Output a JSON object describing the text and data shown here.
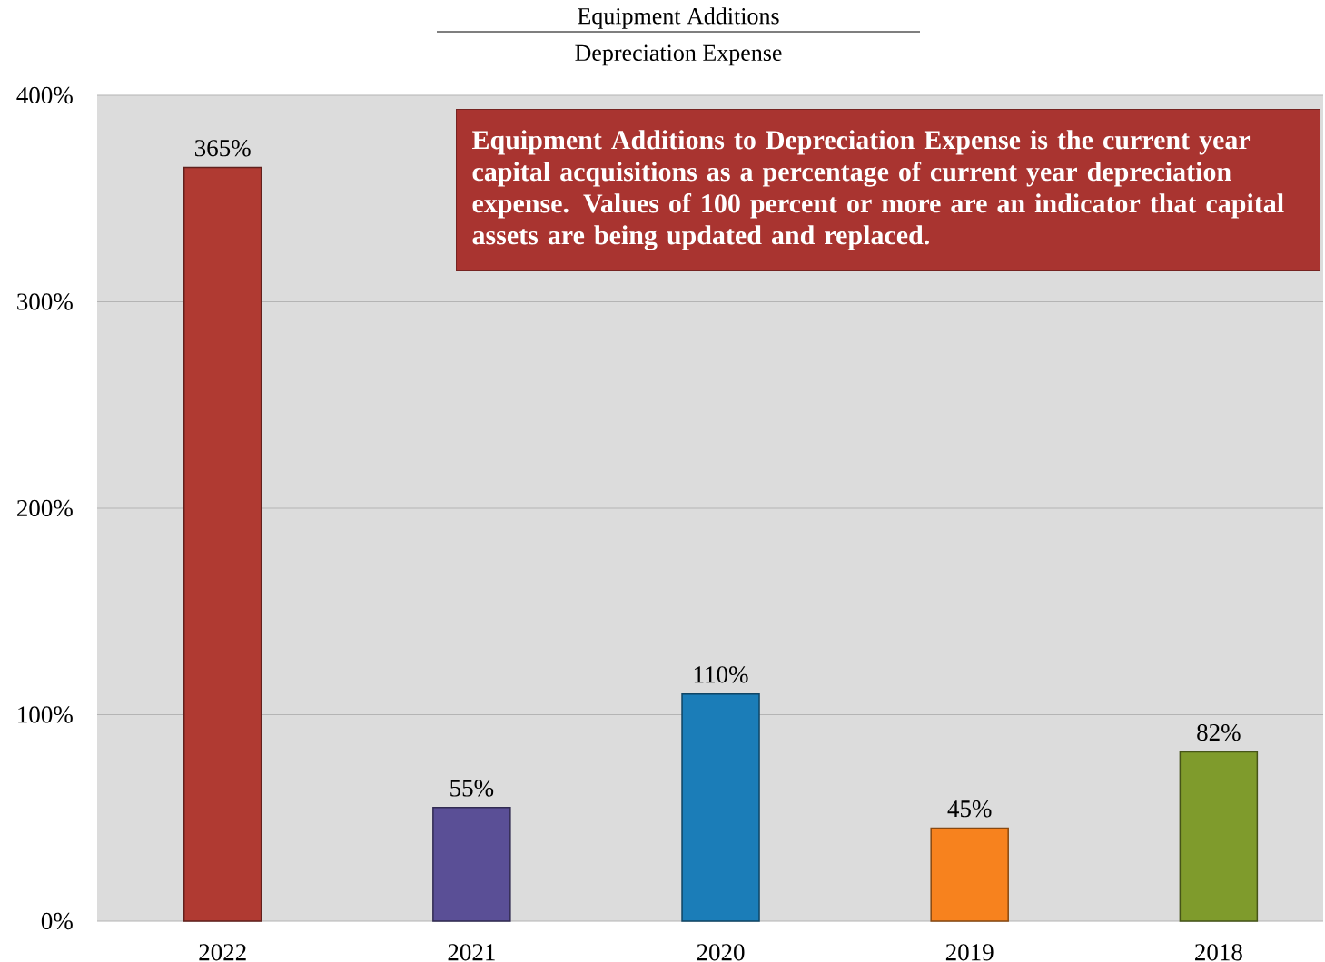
{
  "chart_data": {
    "type": "bar",
    "title": "Equipment Additions",
    "subtitle": "Depreciation Expense",
    "categories": [
      "2022",
      "2021",
      "2020",
      "2019",
      "2018"
    ],
    "values": [
      365,
      55,
      110,
      45,
      82
    ],
    "colors": [
      "#b03a32",
      "#5a4f96",
      "#1b7db8",
      "#f7821e",
      "#7f9b2c"
    ],
    "value_labels": [
      "365%",
      "55%",
      "110%",
      "45%",
      "82%"
    ],
    "ylim": [
      0,
      400
    ],
    "yticks": [
      {
        "value": 0,
        "label": "0%"
      },
      {
        "value": 100,
        "label": "100%"
      },
      {
        "value": 200,
        "label": "200%"
      },
      {
        "value": 300,
        "label": "300%"
      },
      {
        "value": 400,
        "label": "400%"
      }
    ],
    "grid": "y",
    "annotations": [
      "Equipment Additions to Depreciation Expense is the current year capital acquisitions as a percentage of current year depreciation expense. Values of 100 percent or more are an indicator that capital assets are being updated and replaced."
    ]
  }
}
